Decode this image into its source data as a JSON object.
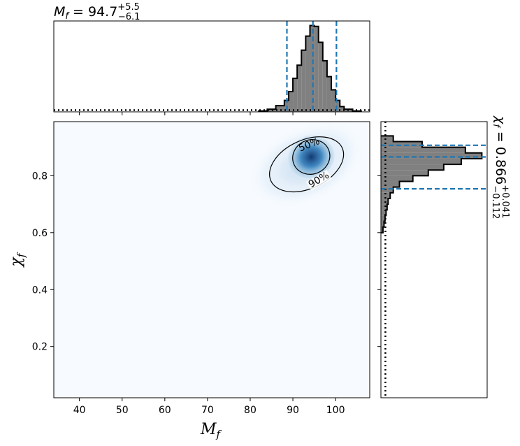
{
  "chart_data": [
    {
      "type": "area",
      "panel": "top-marginal",
      "title_var": "M",
      "title_sub": "f",
      "title_eq": " = ",
      "title_value": "94.7",
      "title_upper": "+5.5",
      "title_lower": "−6.1",
      "median": 94.7,
      "interval": [
        88.6,
        100.2
      ],
      "bin_edges": [
        82,
        84,
        86,
        88,
        89,
        90,
        91,
        92,
        93,
        94,
        95,
        96,
        97,
        98,
        99,
        100,
        101,
        102,
        104,
        106
      ],
      "densities": [
        0.01,
        0.03,
        0.07,
        0.13,
        0.23,
        0.38,
        0.53,
        0.7,
        0.86,
        0.98,
        0.97,
        0.79,
        0.58,
        0.4,
        0.25,
        0.13,
        0.06,
        0.03,
        0.01
      ],
      "prior_level": 0.02,
      "xlim": [
        34,
        108
      ]
    },
    {
      "type": "heatmap",
      "panel": "joint",
      "xlabel_var": "M",
      "xlabel_sub": "f",
      "ylabel_var": "χ",
      "ylabel_sub": "f",
      "xlim": [
        34,
        108
      ],
      "ylim": [
        0.02,
        0.99
      ],
      "xticks": [
        40,
        50,
        60,
        70,
        80,
        90,
        100
      ],
      "yticks": [
        0.2,
        0.4,
        0.6,
        0.8
      ],
      "peak": {
        "x": 94.7,
        "y": 0.866
      },
      "contours": [
        {
          "label": "50%",
          "cx": 94.3,
          "cy": 0.866,
          "rx": 4.4,
          "ry": 0.06,
          "angle_deg": -22
        },
        {
          "label": "90%",
          "cx": 93.2,
          "cy": 0.84,
          "rx": 9.2,
          "ry": 0.085,
          "angle_deg": -25
        }
      ]
    },
    {
      "type": "area",
      "panel": "right-marginal",
      "title_var": "χ",
      "title_sub": "f",
      "title_eq": " = ",
      "title_value": "0.866",
      "title_upper": "+0.041",
      "title_lower": "−0.112",
      "median": 0.866,
      "interval": [
        0.754,
        0.907
      ],
      "bin_edges": [
        0.6,
        0.62,
        0.64,
        0.66,
        0.68,
        0.7,
        0.72,
        0.74,
        0.76,
        0.78,
        0.8,
        0.82,
        0.84,
        0.86,
        0.88,
        0.9,
        0.92,
        0.94
      ],
      "densities": [
        0.02,
        0.03,
        0.04,
        0.05,
        0.06,
        0.07,
        0.09,
        0.12,
        0.18,
        0.31,
        0.46,
        0.61,
        0.78,
        0.98,
        0.82,
        0.4,
        0.12
      ],
      "prior_level": 0.03,
      "ylim": [
        0.02,
        0.99
      ]
    }
  ]
}
